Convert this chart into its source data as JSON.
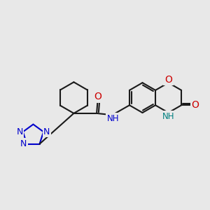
{
  "bg_color": "#e8e8e8",
  "bond_color": "#1a1a1a",
  "nitrogen_color": "#0000cc",
  "oxygen_color": "#cc0000",
  "nh_color": "#008080",
  "lw": 1.5,
  "fs": 9,
  "xlim": [
    0,
    10
  ],
  "ylim": [
    1,
    8
  ]
}
